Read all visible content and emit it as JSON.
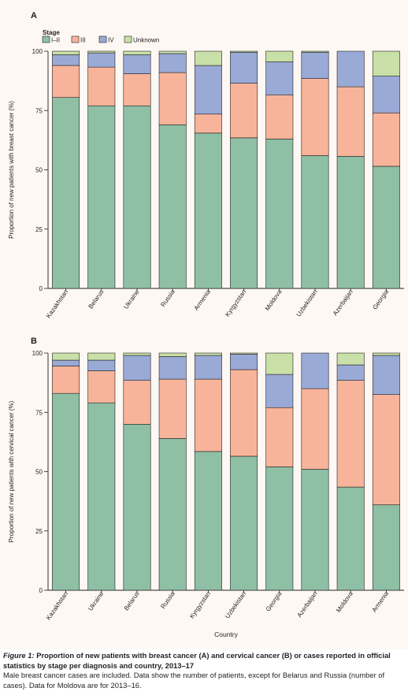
{
  "colors": {
    "I-II": "#8fbfa4",
    "III": "#f8b49a",
    "IV": "#9aaad6",
    "Unknown": "#c9e0a8",
    "background": "#fdf8f3"
  },
  "legend": {
    "title": "Stage",
    "items": [
      "I–II",
      "III",
      "IV",
      "Unknown"
    ]
  },
  "chart_data": [
    {
      "panel": "A",
      "type": "bar",
      "stacked": true,
      "ylabel": "Proportion of new patients with breast cancer (%)",
      "xlabel": "",
      "ylim": [
        0,
        100
      ],
      "yticks": [
        0,
        25,
        50,
        75,
        100
      ],
      "categories": [
        "Kazakhstan",
        "Belarus",
        "Ukraine",
        "Russia",
        "Armenia",
        "Kyrgyzstan",
        "Moldova",
        "Uzbekistan",
        "Azerbaijan",
        "Georgia"
      ],
      "series": [
        {
          "name": "I–II",
          "values": [
            80.5,
            77,
            77,
            69,
            65.5,
            63.5,
            63,
            56,
            55.7,
            51.5
          ]
        },
        {
          "name": "III",
          "values": [
            13.5,
            16.3,
            13.5,
            22,
            8,
            23,
            18.5,
            32.5,
            29.3,
            22.5
          ]
        },
        {
          "name": "IV",
          "values": [
            4.5,
            6,
            8,
            8,
            20.5,
            13,
            14,
            11,
            15,
            15.5
          ]
        },
        {
          "name": "Unknown",
          "values": [
            1.5,
            0.7,
            1.5,
            1,
            6,
            0.5,
            4.5,
            0.5,
            0,
            10.5
          ]
        }
      ]
    },
    {
      "panel": "B",
      "type": "bar",
      "stacked": true,
      "ylabel": "Proportion of new patients with cervical cancer (%)",
      "xlabel": "Country",
      "ylim": [
        0,
        100
      ],
      "yticks": [
        0,
        25,
        50,
        75,
        100
      ],
      "categories": [
        "Kazakhstan",
        "Ukraine",
        "Belarus",
        "Russia",
        "Kyrgyzstan",
        "Uzbekistan",
        "Georgia",
        "Azerbaijan",
        "Moldova",
        "Armenia"
      ],
      "series": [
        {
          "name": "I–II",
          "values": [
            83,
            79,
            70,
            64,
            58.5,
            56.5,
            52,
            51,
            43.5,
            36
          ]
        },
        {
          "name": "III",
          "values": [
            11.5,
            13.5,
            18.5,
            25,
            30.5,
            36.5,
            25,
            34,
            45,
            46.5
          ]
        },
        {
          "name": "IV",
          "values": [
            2.5,
            4.5,
            10.5,
            9.5,
            10,
            6.5,
            14,
            15,
            6.5,
            16.5
          ]
        },
        {
          "name": "Unknown",
          "values": [
            3,
            3,
            1,
            1.5,
            1,
            0.5,
            9,
            0,
            5,
            1
          ]
        }
      ]
    }
  ],
  "caption": {
    "label": "Figure 1:",
    "title": " Proportion of new patients with breast cancer (A) and cervical cancer (B) or cases reported in official statistics by stage per diagnosis and country, 2013–17",
    "note": "Male breast cancer cases are included. Data show the number of patients, except for Belarus and Russia (number of cases). Data for Moldova are for 2013–16."
  }
}
